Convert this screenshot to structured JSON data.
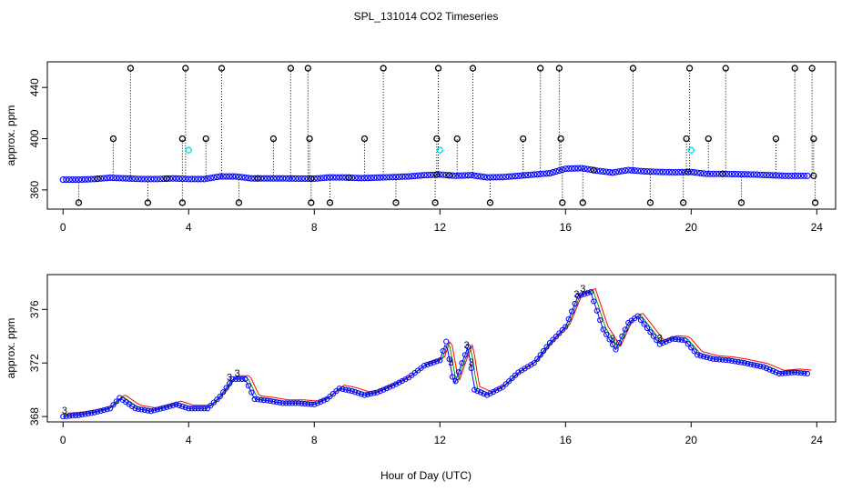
{
  "chart_data": {
    "type": "scatter",
    "title": "SPL_131014  CO2 Timeseries",
    "xlabel": "Hour of Day (UTC)",
    "panels": [
      {
        "name": "full-range",
        "ylabel": "approx. ppm",
        "xlim": [
          -0.5,
          24.6
        ],
        "ylim": [
          345,
          460
        ],
        "xticks": [
          "0",
          "4",
          "8",
          "12",
          "16",
          "20",
          "24"
        ],
        "yticks": [
          "360",
          "400",
          "440"
        ],
        "baseline": {
          "x": [
            0,
            0.5,
            1,
            1.5,
            2,
            2.5,
            3,
            3.5,
            4,
            4.5,
            5,
            5.5,
            6,
            6.5,
            7,
            7.5,
            8,
            8.5,
            9,
            9.5,
            10,
            10.5,
            11,
            11.5,
            12,
            12.5,
            13,
            13.5,
            14,
            14.5,
            15,
            15.5,
            16,
            16.5,
            17,
            17.5,
            18,
            18.5,
            19,
            19.5,
            20,
            20.5,
            21,
            21.5,
            22,
            22.5,
            23,
            23.5,
            23.8
          ],
          "y": [
            368,
            368,
            368.5,
            369.5,
            369,
            368.5,
            368.5,
            369,
            368.5,
            368.5,
            370.5,
            370.5,
            369,
            369,
            369,
            368.8,
            368.8,
            369.8,
            369.7,
            369.2,
            369.6,
            370,
            370.5,
            371.5,
            372,
            371,
            371.5,
            369.8,
            370,
            371,
            372,
            373,
            376.5,
            377,
            375,
            373.5,
            375.5,
            374.5,
            374,
            373.8,
            374,
            372.5,
            372.5,
            372.3,
            372,
            371.5,
            371,
            371,
            371
          ]
        },
        "spikes_high": [
          2.15,
          3.9,
          5.05,
          7.25,
          7.8,
          10.2,
          11.95,
          13.05,
          15.2,
          15.8,
          18.15,
          19.95,
          21.1,
          23.3,
          23.85
        ],
        "spikes_mid": [
          1.6,
          3.8,
          4.55,
          6.7,
          7.85,
          9.6,
          11.9,
          12.55,
          14.65,
          15.85,
          19.85,
          20.55,
          22.7,
          23.9
        ],
        "spikes_low": [
          0.5,
          2.7,
          3.8,
          5.6,
          7.9,
          8.5,
          10.6,
          11.85,
          13.6,
          15.9,
          16.55,
          18.7,
          19.75,
          21.6,
          23.95
        ],
        "cyan_points": [
          {
            "x": 4.0,
            "y": 391
          },
          {
            "x": 12.0,
            "y": 391
          },
          {
            "x": 20.0,
            "y": 391
          }
        ]
      },
      {
        "name": "zoomed",
        "ylabel": "approx. ppm",
        "xlim": [
          -0.5,
          24.6
        ],
        "ylim": [
          367.6,
          378.6
        ],
        "xticks": [
          "0",
          "4",
          "8",
          "12",
          "16",
          "20",
          "24"
        ],
        "yticks": [
          "368",
          "372",
          "376"
        ],
        "series": [
          {
            "name": "1",
            "color": "#ff0000"
          },
          {
            "name": "2",
            "color": "#00a000"
          },
          {
            "name": "3",
            "color": "#0000ff"
          }
        ],
        "x": [
          0,
          0.5,
          1,
          1.5,
          1.8,
          2.3,
          2.8,
          3.3,
          3.6,
          4.0,
          4.6,
          5.0,
          5.4,
          5.8,
          6.1,
          6.5,
          7.0,
          7.5,
          8.0,
          8.4,
          8.8,
          9.2,
          9.6,
          10.0,
          10.5,
          11.0,
          11.5,
          12.0,
          12.2,
          12.45,
          12.7,
          12.9,
          13.1,
          13.5,
          14.0,
          14.5,
          15.0,
          15.5,
          16.0,
          16.4,
          16.8,
          17.2,
          17.6,
          18.0,
          18.3,
          18.7,
          19.0,
          19.4,
          19.8,
          20.2,
          20.7,
          21.2,
          21.7,
          22.3,
          22.8,
          23.3,
          23.75
        ],
        "y": [
          368,
          368.1,
          368.3,
          368.6,
          369.4,
          368.6,
          368.4,
          368.7,
          368.9,
          368.6,
          368.6,
          369.5,
          370.8,
          370.8,
          369.3,
          369.2,
          369.0,
          369.0,
          368.9,
          369.3,
          370.1,
          369.9,
          369.6,
          369.8,
          370.3,
          370.9,
          371.8,
          372.2,
          373.6,
          370.3,
          372.0,
          373.2,
          370.0,
          369.6,
          370.2,
          371.3,
          372.0,
          373.5,
          374.7,
          377.0,
          377.3,
          374.5,
          373.0,
          375.0,
          375.5,
          374.3,
          373.4,
          373.8,
          373.7,
          372.6,
          372.3,
          372.2,
          372.0,
          371.7,
          371.2,
          371.3,
          371.2
        ]
      }
    ]
  }
}
